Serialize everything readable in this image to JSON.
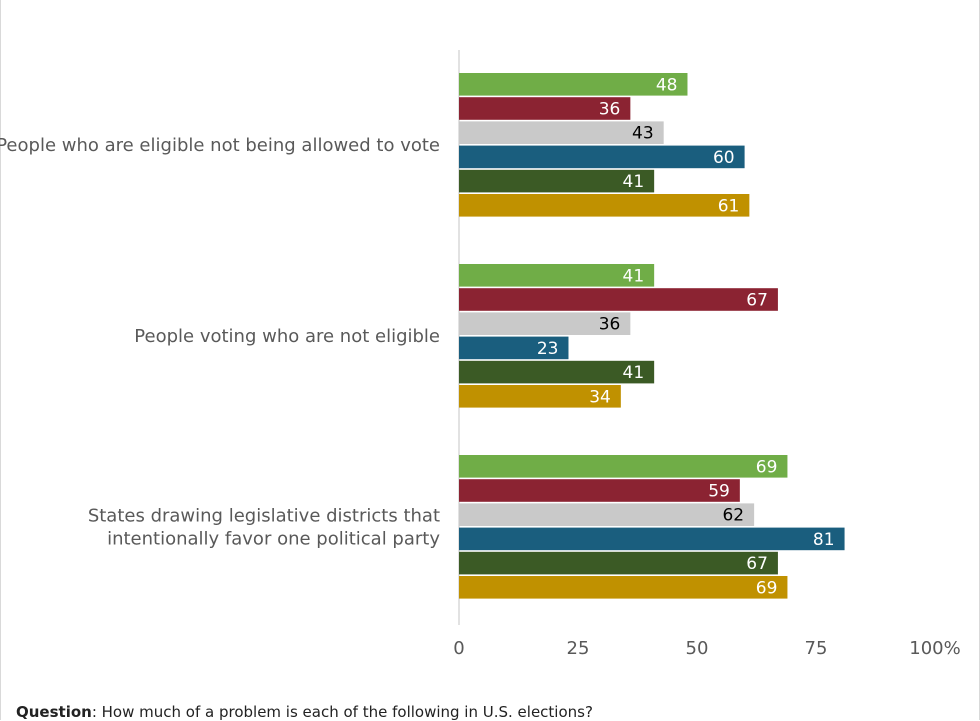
{
  "chart_data": {
    "type": "bar",
    "orientation": "horizontal",
    "categories": [
      [
        "People who are eligible not being allowed to vote"
      ],
      [
        "People voting who are not eligible"
      ],
      [
        "States drawing legislative districts that",
        "intentionally favor one political party"
      ]
    ],
    "series": [
      {
        "values": [
          48,
          41,
          69
        ],
        "color": "#70ad47",
        "label_color": "#ffffff"
      },
      {
        "values": [
          36,
          67,
          59
        ],
        "color": "#8b2332",
        "label_color": "#ffffff"
      },
      {
        "values": [
          43,
          36,
          62
        ],
        "color": "#c9c9c9",
        "label_color": "#000000"
      },
      {
        "values": [
          60,
          23,
          81
        ],
        "color": "#1a5e7e",
        "label_color": "#ffffff"
      },
      {
        "values": [
          41,
          41,
          67
        ],
        "color": "#3b5a25",
        "label_color": "#ffffff"
      },
      {
        "values": [
          61,
          34,
          69
        ],
        "color": "#c09100",
        "label_color": "#ffffff"
      }
    ],
    "x_ticks": [
      "0",
      "25",
      "50",
      "75",
      "100%"
    ],
    "xlim": [
      0,
      100
    ],
    "grid": false,
    "legend": "none"
  },
  "footnote": {
    "label": "Question",
    "text": ": How much of a problem is each of the following in U.S. elections?"
  }
}
